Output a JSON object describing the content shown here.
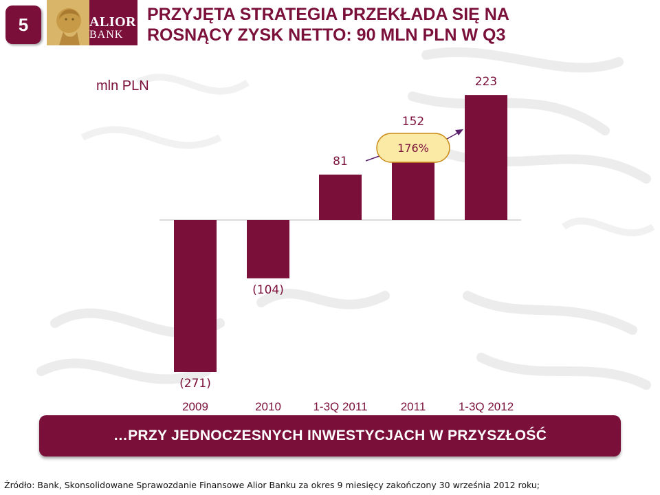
{
  "slide": {
    "number": "5",
    "title_line1": "PRZYJĘTA STRATEGIA PRZEKŁADA SIĘ NA",
    "title_line2": "ROSNĄCY ZYSK NETTO: 90 MLN PLN W Q3"
  },
  "logo": {
    "line1": "ALIOR",
    "line2": "BANK"
  },
  "chart_data": {
    "type": "bar",
    "unit_label": "mln PLN",
    "categories": [
      "2009",
      "2010",
      "1-3Q 2011",
      "2011",
      "1-3Q 2012"
    ],
    "values": [
      -271,
      -104,
      81,
      152,
      223
    ],
    "value_labels": [
      "(271)",
      "(104)",
      "81",
      "152",
      "223"
    ],
    "annotation": {
      "label": "176%"
    },
    "colors": {
      "bar": "#7a0f3a",
      "annotation_fill": "#fbe9a6",
      "annotation_stroke": "#c98a16"
    }
  },
  "banner": {
    "text": "…PRZY JEDNOCZESNYCH INWESTYCJACH W PRZYSZŁOŚĆ"
  },
  "source": {
    "text": "Źródło: Bank, Skonsolidowane Sprawozdanie Finansowe Alior Banku za okres 9 miesięcy zakończony 30 września 2012 roku;"
  },
  "colors": {
    "brand": "#7a0f3a"
  }
}
